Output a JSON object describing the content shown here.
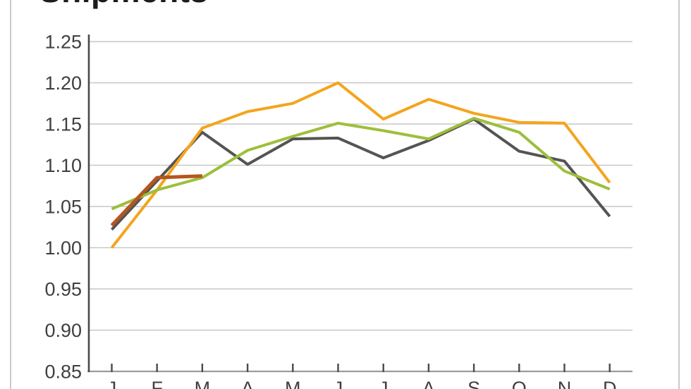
{
  "chart_data": {
    "type": "line",
    "title": "Shipments",
    "x_tick_labels": [
      "J",
      "F",
      "M",
      "A",
      "M",
      "J",
      "J",
      "A",
      "S",
      "O",
      "N",
      "D"
    ],
    "y_tick_labels": [
      "1.25",
      "1.20",
      "1.15",
      "1.10",
      "1.05",
      "1.00",
      "0.95",
      "0.90",
      "0.85"
    ],
    "ylim": [
      0.85,
      1.25
    ],
    "y_step": 0.05,
    "grid": true,
    "legend": "none",
    "series": [
      {
        "name": "gray",
        "color": "#545454",
        "stroke_width": 4,
        "values": [
          1.022,
          1.081,
          1.14,
          1.101,
          1.132,
          1.133,
          1.109,
          1.13,
          1.156,
          1.117,
          1.105,
          1.038
        ]
      },
      {
        "name": "orange",
        "color": "#F4A41D",
        "stroke_width": 4,
        "values": [
          1.0,
          1.07,
          1.145,
          1.165,
          1.175,
          1.2,
          1.156,
          1.18,
          1.163,
          1.152,
          1.151,
          1.079
        ]
      },
      {
        "name": "green",
        "color": "#9DBF3B",
        "stroke_width": 4,
        "values": [
          1.047,
          1.07,
          1.085,
          1.118,
          1.135,
          1.151,
          1.142,
          1.132,
          1.157,
          1.14,
          1.093,
          1.071
        ]
      },
      {
        "name": "red",
        "color": "#B5561F",
        "stroke_width": 5,
        "values": [
          1.027,
          1.085,
          1.087
        ]
      }
    ]
  }
}
